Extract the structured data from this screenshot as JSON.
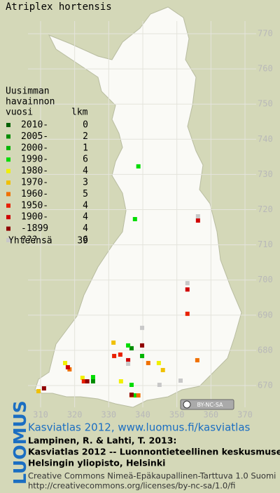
{
  "title": "Atriplex hortensis",
  "legend": {
    "heading": [
      "Uusimman",
      "havainnon",
      "vuosi"
    ],
    "count_heading": "lkm",
    "rows": [
      {
        "label": "2010-",
        "count": 0,
        "color": "#006000",
        "points": []
      },
      {
        "label": "2005-",
        "count": 2,
        "color": "#008c00",
        "points": [
          [
            325.4,
            671.2
          ],
          [
            336.7,
            680.6
          ]
        ]
      },
      {
        "label": "2000-",
        "count": 1,
        "color": "#00b400",
        "points": [
          [
            339.8,
            678.4
          ]
        ]
      },
      {
        "label": "1990-",
        "count": 6,
        "color": "#00dc00",
        "points": [
          [
            338.7,
            732.3
          ],
          [
            337.7,
            717.3
          ],
          [
            335.7,
            681.4
          ],
          [
            325.4,
            672.4
          ],
          [
            336.7,
            670.2
          ],
          [
            337.7,
            667.2
          ]
        ]
      },
      {
        "label": "1980-",
        "count": 4,
        "color": "#f0f000",
        "points": [
          [
            317.2,
            676.4
          ],
          [
            322.3,
            672.2
          ],
          [
            333.6,
            671.2
          ],
          [
            344.7,
            676.4
          ]
        ]
      },
      {
        "label": "1970-",
        "count": 3,
        "color": "#f0c000",
        "points": [
          [
            331.4,
            682.2
          ],
          [
            345.9,
            674.4
          ],
          [
            309.4,
            668.4
          ]
        ]
      },
      {
        "label": "1960-",
        "count": 5,
        "color": "#f07000",
        "points": [
          [
            341.6,
            676.4
          ],
          [
            356.0,
            677.2
          ],
          [
            336.7,
            667.2
          ],
          [
            338.7,
            667.2
          ],
          [
            318.5,
            674.6
          ]
        ]
      },
      {
        "label": "1950-",
        "count": 4,
        "color": "#e82000",
        "points": [
          [
            331.6,
            678.4
          ],
          [
            333.4,
            678.8
          ],
          [
            353.1,
            690.4
          ],
          [
            322.7,
            671.2
          ]
        ]
      },
      {
        "label": "1900-",
        "count": 4,
        "color": "#d00000",
        "points": [
          [
            356.2,
            716.9
          ],
          [
            353.1,
            697.3
          ],
          [
            335.7,
            677.2
          ],
          [
            318.0,
            675.2
          ]
        ]
      },
      {
        "label": "-1899",
        "count": 4,
        "color": "#900000",
        "points": [
          [
            339.8,
            681.4
          ],
          [
            311.0,
            669.2
          ],
          [
            336.7,
            667.4
          ],
          [
            323.7,
            671.2
          ]
        ]
      },
      {
        "label": "???",
        "count": 6,
        "color": "#c8c8c8",
        "points": [
          [
            356.2,
            718.1
          ],
          [
            353.1,
            699.1
          ],
          [
            339.8,
            686.4
          ],
          [
            344.9,
            670.2
          ],
          [
            351.1,
            671.4
          ],
          [
            335.7,
            676.2
          ]
        ]
      }
    ],
    "total_label": "Yhteensä",
    "total": 39
  },
  "axes": {
    "xlim": [
      310,
      370
    ],
    "ylim": [
      670,
      770
    ],
    "xticks": [
      310,
      320,
      330,
      340,
      350,
      360,
      370
    ],
    "yticks": [
      670,
      680,
      690,
      700,
      710,
      720,
      730,
      740,
      750,
      760,
      770
    ]
  },
  "license_badge": "BY-NC-SA",
  "footer": {
    "logo": "LUOMUS",
    "link": "Kasviatlas 2012, www.luomus.fi/kasviatlas",
    "citation": [
      "Lampinen, R. & Lahti, T. 2013:",
      "Kasviatlas 2012 -- Luonnontieteellinen keskusmuseo,",
      "Helsingin yliopisto, Helsinki"
    ],
    "license": [
      "Creative Commons Nimeä-Epäkaupallinen-Tarttuva 1.0 Suomi",
      "http://creativecommons.org/licenses/by-nc-sa/1.0/fi"
    ]
  }
}
